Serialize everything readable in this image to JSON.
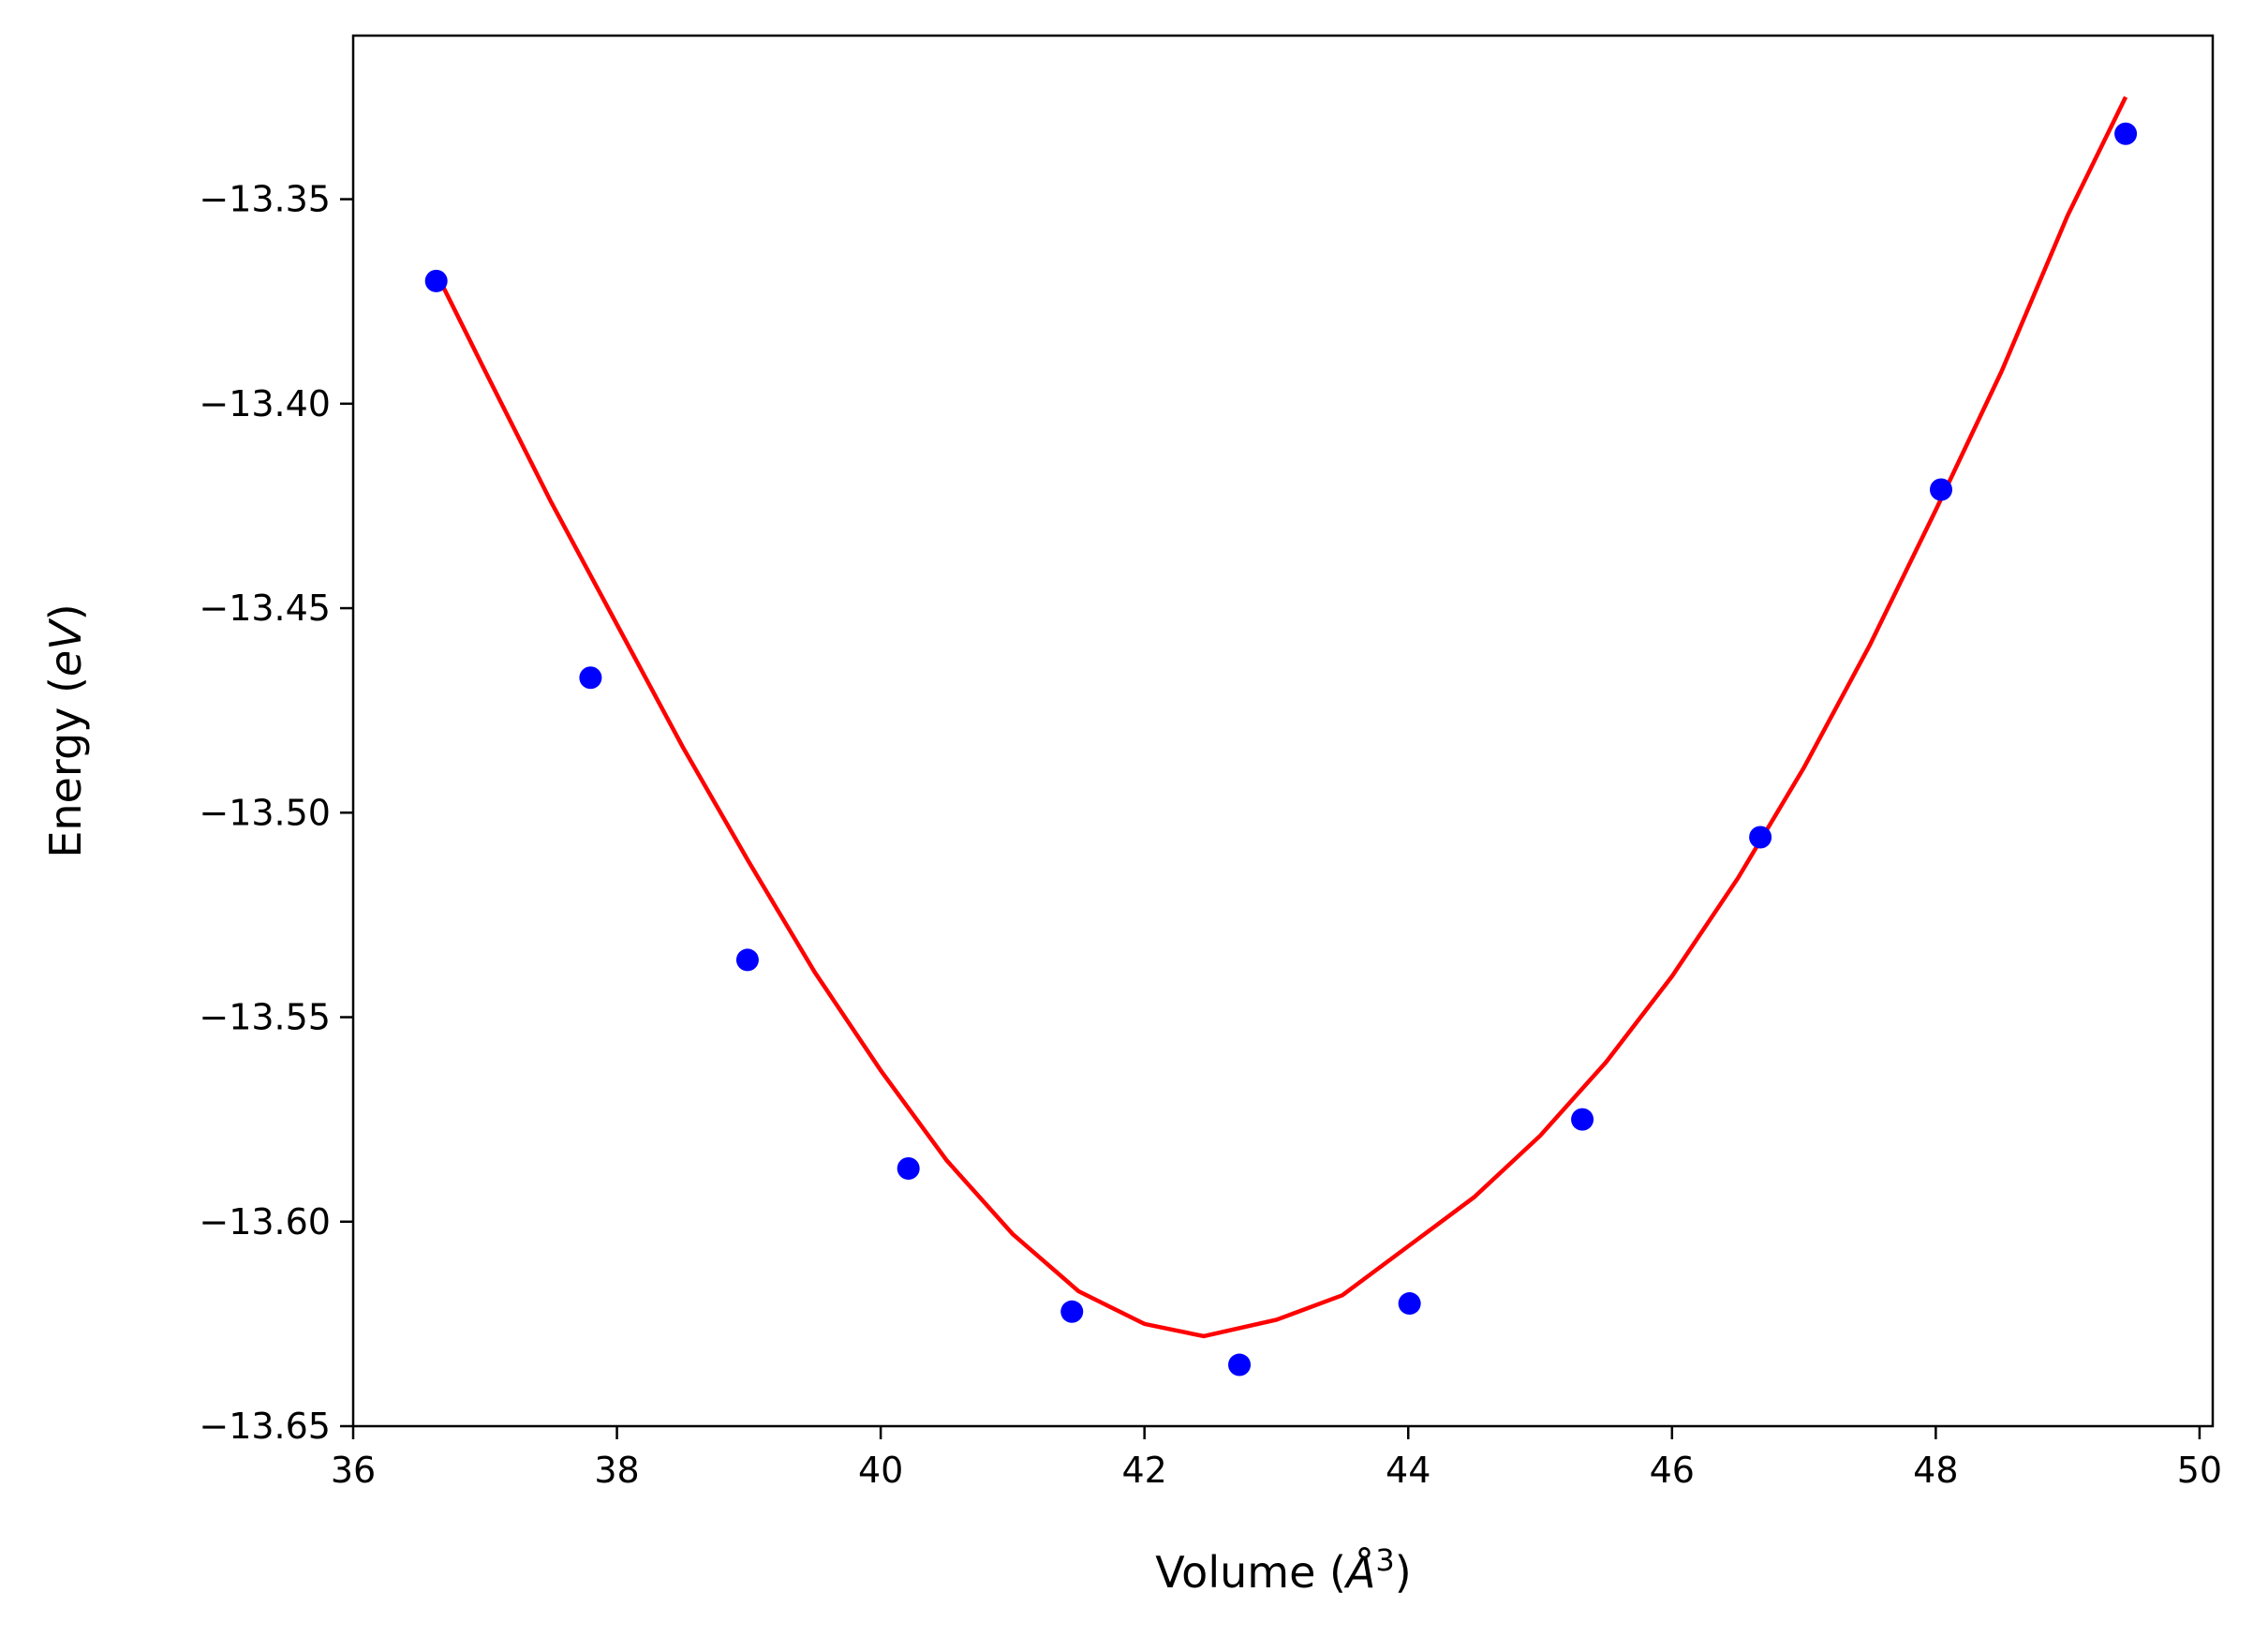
{
  "chart_data": {
    "type": "scatter",
    "title": "",
    "xlabel": {
      "prefix": "Volume (",
      "symbol": "Å",
      "sup": "3",
      "suffix": ")"
    },
    "ylabel": {
      "prefix": "Energy (",
      "italic": "eV",
      "suffix": ")"
    },
    "xlim": [
      36,
      50.1
    ],
    "ylim": [
      -13.65,
      -13.31
    ],
    "xticks": [
      36,
      38,
      40,
      42,
      44,
      46,
      48,
      50
    ],
    "xtick_labels": [
      "36",
      "38",
      "40",
      "42",
      "44",
      "46",
      "48",
      "50"
    ],
    "yticks": [
      -13.35,
      -13.4,
      -13.45,
      -13.5,
      -13.55,
      -13.6,
      -13.65
    ],
    "ytick_labels": [
      "−13.35",
      "−13.40",
      "−13.45",
      "−13.50",
      "−13.55",
      "−13.60",
      "−13.65"
    ],
    "grid": false,
    "series": [
      {
        "kind": "points",
        "color": "#0000ff",
        "x": [
          36.63,
          37.8,
          38.99,
          40.21,
          41.45,
          42.72,
          44.01,
          45.32,
          46.67,
          48.04,
          49.44
        ],
        "y": [
          -13.37,
          -13.467,
          -13.536,
          -13.587,
          -13.622,
          -13.635,
          -13.62,
          -13.575,
          -13.506,
          -13.421,
          -13.334
        ]
      },
      {
        "kind": "fit-line",
        "color": "#ff0000",
        "x": [
          36.63,
          37.0,
          37.5,
          38.0,
          38.5,
          39.0,
          39.5,
          40.0,
          40.5,
          41.0,
          41.5,
          42.0,
          42.45,
          43.0,
          43.5,
          44.0,
          44.5,
          45.0,
          45.5,
          46.0,
          46.5,
          47.0,
          47.5,
          48.0,
          48.5,
          49.0,
          49.44
        ],
        "y": [
          -13.368,
          -13.392,
          -13.424,
          -13.454,
          -13.484,
          -13.512,
          -13.539,
          -13.563,
          -13.585,
          -13.603,
          -13.617,
          -13.625,
          -13.628,
          -13.624,
          -13.618,
          -13.606,
          -13.594,
          -13.579,
          -13.561,
          -13.54,
          -13.516,
          -13.489,
          -13.459,
          -13.426,
          -13.392,
          -13.354,
          -13.325
        ]
      }
    ]
  }
}
